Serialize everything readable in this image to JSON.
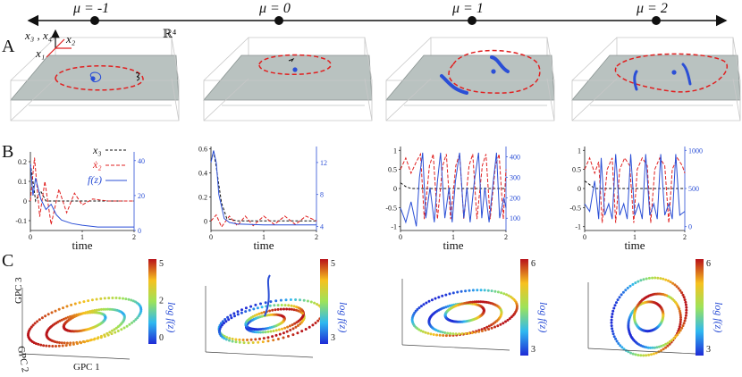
{
  "panels": {
    "a": "A",
    "b": "B",
    "c": "C"
  },
  "mu_labels": [
    "μ = -1",
    "μ = 0",
    "μ = 1",
    "μ = 2"
  ],
  "panel_a": {
    "space_label": "ℝ⁴",
    "axis_x34": "x₃ , x₄",
    "axis_x2": "x₂",
    "axis_x1": "x₁"
  },
  "legend": {
    "x3": "x₃",
    "x2": "ẋ₂",
    "fz": "f(z)"
  },
  "colors": {
    "red": "#e02020",
    "blue": "#2b4fd6",
    "black": "#111111",
    "plane": "#b9c2c0"
  },
  "chart_data": [
    {
      "type": "line",
      "title": "μ = -1",
      "xlabel": "time",
      "x_ticks": [
        "0",
        "1",
        "2"
      ],
      "y_left_ticks": [
        "0.2",
        "0.1",
        "0",
        "-0.1"
      ],
      "y_right_ticks": [
        "40",
        "20",
        "0"
      ],
      "series": [
        {
          "name": "x₃",
          "style": "dashed black",
          "axis": "left",
          "x": [
            0,
            0.05,
            0.1,
            0.2,
            0.3,
            0.5,
            0.8,
            1.2,
            2
          ],
          "y": [
            0.19,
            0.1,
            0.0,
            0.05,
            0.0,
            0.0,
            0.0,
            0.0,
            0.0
          ]
        },
        {
          "name": "ẋ₂",
          "style": "dashed red",
          "axis": "left",
          "x": [
            0,
            0.08,
            0.18,
            0.28,
            0.4,
            0.55,
            0.7,
            0.85,
            1.0,
            1.2,
            1.5,
            2
          ],
          "y": [
            0.0,
            0.22,
            -0.08,
            0.1,
            -0.12,
            0.06,
            -0.06,
            0.04,
            -0.02,
            0.01,
            0.0,
            0.0
          ]
        },
        {
          "name": "f(z)",
          "style": "solid blue",
          "axis": "right",
          "x": [
            0,
            0.05,
            0.1,
            0.2,
            0.3,
            0.4,
            0.5,
            0.6,
            0.8,
            1.0,
            1.3,
            2
          ],
          "y": [
            38,
            20,
            30,
            18,
            12,
            15,
            9,
            6,
            4,
            3,
            2,
            2
          ]
        }
      ]
    },
    {
      "type": "line",
      "title": "μ = 0",
      "xlabel": "time",
      "x_ticks": [
        "0",
        "1",
        "2"
      ],
      "y_left_ticks": [
        "0.6",
        "0.4",
        "0.2",
        "0"
      ],
      "y_right_ticks": [
        "12",
        "8",
        "4"
      ],
      "series": [
        {
          "name": "x₃",
          "style": "dashed black",
          "axis": "left",
          "x": [
            0,
            0.05,
            0.1,
            0.15,
            0.2,
            0.3,
            0.5,
            1.0,
            2
          ],
          "y": [
            0.5,
            0.58,
            0.45,
            0.3,
            0.15,
            0.02,
            0.0,
            0.0,
            0.0
          ]
        },
        {
          "name": "ẋ₂",
          "style": "dashed red",
          "axis": "left",
          "x": [
            0,
            0.1,
            0.2,
            0.35,
            0.5,
            0.65,
            0.8,
            1.0,
            1.2,
            1.4,
            1.6,
            1.8,
            2
          ],
          "y": [
            0.0,
            0.05,
            -0.05,
            0.04,
            -0.04,
            0.04,
            -0.04,
            0.04,
            -0.03,
            0.04,
            -0.03,
            0.04,
            0.0
          ]
        },
        {
          "name": "f(z)",
          "style": "solid blue",
          "axis": "right",
          "x": [
            0,
            0.05,
            0.1,
            0.15,
            0.25,
            0.35,
            0.5,
            1.0,
            2
          ],
          "y": [
            12,
            13.5,
            12,
            8,
            5,
            4.5,
            4.3,
            4.2,
            4.2
          ]
        }
      ]
    },
    {
      "type": "line",
      "title": "μ = 1",
      "xlabel": "time",
      "x_ticks": [
        "0",
        "1",
        "2"
      ],
      "y_left_ticks": [
        "1",
        "0.5",
        "0",
        "-0.5",
        "-1"
      ],
      "y_right_ticks": [
        "400",
        "300",
        "200",
        "100"
      ],
      "series": [
        {
          "name": "x₃",
          "style": "dashed black",
          "axis": "left",
          "x": [
            0,
            0.1,
            0.2,
            0.4,
            0.7,
            1.0,
            2
          ],
          "y": [
            0.15,
            0.05,
            0.0,
            0.0,
            0.0,
            0.0,
            0.0
          ]
        },
        {
          "name": "ẋ₂",
          "style": "dashed red",
          "axis": "left",
          "x": [
            0,
            0.1,
            0.2,
            0.3,
            0.38,
            0.45,
            0.55,
            0.62,
            0.7,
            0.8,
            0.87,
            0.95,
            1.05,
            1.12,
            1.2,
            1.3,
            1.37,
            1.45,
            1.55,
            1.62,
            1.7,
            1.8,
            1.87,
            1.95,
            2
          ],
          "y": [
            0.5,
            0.8,
            0.4,
            0.7,
            0.9,
            -0.8,
            0.6,
            0.9,
            -0.8,
            0.6,
            0.9,
            -0.8,
            0.6,
            0.9,
            -0.8,
            0.6,
            0.9,
            -0.8,
            0.6,
            0.9,
            -0.8,
            0.6,
            0.9,
            -0.8,
            0.5
          ]
        },
        {
          "name": "f(z)",
          "style": "solid blue",
          "axis": "right",
          "x": [
            0,
            0.1,
            0.2,
            0.3,
            0.36,
            0.42,
            0.48,
            0.56,
            0.64,
            0.7,
            0.76,
            0.84,
            0.92,
            0.98,
            1.04,
            1.12,
            1.2,
            1.26,
            1.32,
            1.4,
            1.48,
            1.54,
            1.6,
            1.68,
            1.76,
            1.82,
            1.88,
            1.96,
            2
          ],
          "y": [
            150,
            80,
            180,
            60,
            300,
            420,
            100,
            250,
            80,
            280,
            420,
            100,
            250,
            80,
            280,
            420,
            100,
            250,
            80,
            280,
            420,
            100,
            250,
            80,
            280,
            420,
            100,
            200,
            150
          ]
        }
      ]
    },
    {
      "type": "line",
      "title": "μ = 2",
      "xlabel": "time",
      "x_ticks": [
        "0",
        "1",
        "2"
      ],
      "y_left_ticks": [
        "1",
        "0.5",
        "0",
        "-0.5",
        "-1"
      ],
      "y_right_ticks": [
        "1000",
        "500",
        "0"
      ],
      "series": [
        {
          "name": "x₃",
          "style": "dashed black",
          "axis": "left",
          "x": [
            0,
            0.1,
            0.2,
            0.4,
            0.7,
            1.0,
            2
          ],
          "y": [
            0.2,
            0.1,
            0.0,
            0.0,
            0.0,
            0.0,
            0.0
          ]
        },
        {
          "name": "ẋ₂",
          "style": "dashed red",
          "axis": "left",
          "x": [
            0,
            0.1,
            0.2,
            0.28,
            0.35,
            0.45,
            0.55,
            0.62,
            0.7,
            0.8,
            0.9,
            0.98,
            1.05,
            1.15,
            1.25,
            1.32,
            1.4,
            1.5,
            1.6,
            1.68,
            1.75,
            1.85,
            1.95,
            2
          ],
          "y": [
            0.5,
            0.8,
            0.4,
            0.7,
            -0.9,
            0.5,
            0.8,
            -0.9,
            0.5,
            0.8,
            0.6,
            -0.9,
            0.5,
            0.8,
            0.6,
            -0.9,
            0.5,
            0.8,
            0.6,
            -0.9,
            0.5,
            0.8,
            0.6,
            0.4
          ]
        },
        {
          "name": "f(z)",
          "style": "solid blue",
          "axis": "right",
          "x": [
            0,
            0.1,
            0.2,
            0.28,
            0.33,
            0.4,
            0.48,
            0.55,
            0.62,
            0.7,
            0.78,
            0.85,
            0.92,
            1.0,
            1.08,
            1.15,
            1.22,
            1.3,
            1.38,
            1.45,
            1.52,
            1.6,
            1.68,
            1.75,
            1.82,
            1.9,
            2
          ],
          "y": [
            300,
            200,
            600,
            100,
            900,
            150,
            300,
            100,
            950,
            150,
            300,
            100,
            950,
            150,
            300,
            100,
            950,
            150,
            300,
            100,
            950,
            150,
            300,
            100,
            950,
            150,
            200
          ]
        }
      ]
    }
  ],
  "panel_c": [
    {
      "gpc3": "GPC 3",
      "gpc2": "GPC 2",
      "gpc1": "GPC 1",
      "cb_ticks": [
        "5",
        "2",
        "0"
      ],
      "cb_title": "log f(z)",
      "axis_ticks": [
        "1",
        "1",
        "-1"
      ]
    },
    {
      "cb_ticks": [
        "5",
        "3"
      ],
      "cb_title": "log f(z)",
      "axis_ticks": [
        "1",
        "0",
        "-1",
        "1",
        "0",
        "-1"
      ]
    },
    {
      "cb_ticks": [
        "6",
        "3"
      ],
      "cb_title": "log f(z)",
      "axis_ticks": [
        "1",
        "0",
        "-1",
        "-1",
        "0",
        "1"
      ]
    },
    {
      "cb_ticks": [
        "6",
        "3"
      ],
      "cb_title": "log f(z)",
      "axis_ticks": [
        "2",
        "0",
        "-2"
      ]
    }
  ]
}
